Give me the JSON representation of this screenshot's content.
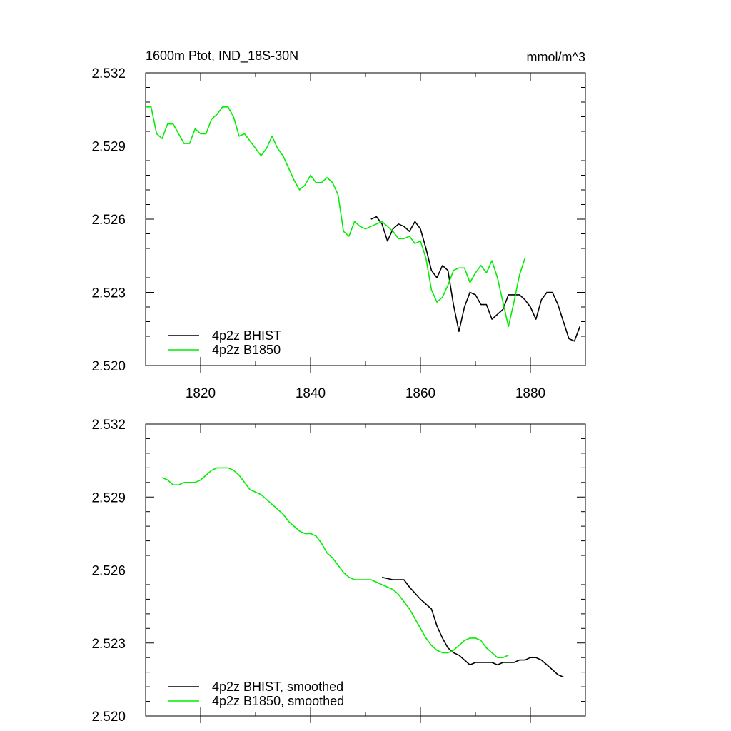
{
  "colors": {
    "bhist": "#000000",
    "b1850": "#00ee00"
  },
  "chart_data": [
    {
      "type": "line",
      "title_left": "1600m Ptot, IND_18S-30N",
      "title_right": "mmol/m^3",
      "xlim": [
        1810,
        1890
      ],
      "ylim": [
        2.52,
        2.532
      ],
      "xticks": [
        1820,
        1840,
        1860,
        1880
      ],
      "xtick_labels": [
        "1820",
        "1840",
        "1860",
        "1880"
      ],
      "yticks": [
        2.52,
        2.523,
        2.526,
        2.529,
        2.532
      ],
      "ytick_labels": [
        "2.520",
        "2.523",
        "2.526",
        "2.529",
        "2.532"
      ],
      "show_xtick_labels": true,
      "legend_position": "bottom-left",
      "series": [
        {
          "name": "4p2z BHIST",
          "color": "#000000",
          "x": [
            1851,
            1852,
            1853,
            1854,
            1855,
            1856,
            1857,
            1858,
            1859,
            1860,
            1861,
            1862,
            1863,
            1864,
            1865,
            1866,
            1867,
            1868,
            1869,
            1870,
            1871,
            1872,
            1873,
            1874,
            1875,
            1876,
            1877,
            1878,
            1879,
            1880,
            1881,
            1882,
            1883,
            1884,
            1885,
            1886,
            1887,
            1888,
            1889
          ],
          "y": [
            2.526,
            2.5261,
            2.5258,
            2.5251,
            2.5256,
            2.5258,
            2.5257,
            2.5255,
            2.5259,
            2.5256,
            2.5248,
            2.5239,
            2.5236,
            2.5241,
            2.5239,
            2.5225,
            2.5214,
            2.5224,
            2.523,
            2.5229,
            2.5225,
            2.5225,
            2.5219,
            2.5221,
            2.5223,
            2.5229,
            2.5229,
            2.5229,
            2.5227,
            2.5224,
            2.5219,
            2.5227,
            2.523,
            2.523,
            2.5225,
            2.5218,
            2.5211,
            2.521,
            2.5216
          ]
        },
        {
          "name": "4p2z B1850",
          "color": "#00ee00",
          "x": [
            1810,
            1811,
            1812,
            1813,
            1814,
            1815,
            1816,
            1817,
            1818,
            1819,
            1820,
            1821,
            1822,
            1823,
            1824,
            1825,
            1826,
            1827,
            1828,
            1829,
            1830,
            1831,
            1832,
            1833,
            1834,
            1835,
            1836,
            1837,
            1838,
            1839,
            1840,
            1841,
            1842,
            1843,
            1844,
            1845,
            1846,
            1847,
            1848,
            1849,
            1850,
            1851,
            1852,
            1853,
            1854,
            1855,
            1856,
            1857,
            1858,
            1859,
            1860,
            1861,
            1862,
            1863,
            1864,
            1865,
            1866,
            1867,
            1868,
            1869,
            1870,
            1871,
            1872,
            1873,
            1874,
            1875,
            1876,
            1877,
            1878,
            1879
          ],
          "y": [
            2.5306,
            2.5306,
            2.5295,
            2.5293,
            2.5299,
            2.5299,
            2.5295,
            2.5291,
            2.5291,
            2.5297,
            2.5295,
            2.5295,
            2.5301,
            2.5303,
            2.5306,
            2.5306,
            2.5302,
            2.5294,
            2.5295,
            2.5292,
            2.5289,
            2.5286,
            2.5289,
            2.5294,
            2.5289,
            2.5286,
            2.5281,
            2.5276,
            2.5272,
            2.5274,
            2.5278,
            2.5275,
            2.5275,
            2.5277,
            2.5275,
            2.527,
            2.5255,
            2.5253,
            2.5259,
            2.5257,
            2.5256,
            2.5257,
            2.5258,
            2.5259,
            2.5257,
            2.5255,
            2.5252,
            2.5252,
            2.5253,
            2.525,
            2.5251,
            2.5244,
            2.5231,
            2.5226,
            2.5228,
            2.5233,
            2.5239,
            2.524,
            2.524,
            2.5234,
            2.5238,
            2.5241,
            2.5238,
            2.5243,
            2.5236,
            2.5226,
            2.5216,
            2.5226,
            2.5237,
            2.5244
          ]
        }
      ]
    },
    {
      "type": "line",
      "xlim": [
        1810,
        1890
      ],
      "ylim": [
        2.52,
        2.532
      ],
      "xticks": [
        1820,
        1840,
        1860,
        1880
      ],
      "yticks": [
        2.52,
        2.523,
        2.526,
        2.529,
        2.532
      ],
      "ytick_labels": [
        "2.520",
        "2.523",
        "2.526",
        "2.529",
        "2.532"
      ],
      "show_xtick_labels": false,
      "legend_position": "bottom-left",
      "series": [
        {
          "name": "4p2z BHIST, smoothed",
          "color": "#000000",
          "x": [
            1853,
            1855,
            1857,
            1858,
            1860,
            1862,
            1863,
            1864,
            1865,
            1866,
            1867,
            1868,
            1869,
            1870,
            1871,
            1872,
            1873,
            1874,
            1875,
            1876,
            1877,
            1878,
            1879,
            1880,
            1881,
            1882,
            1883,
            1884,
            1885,
            1886
          ],
          "y": [
            2.5257,
            2.5256,
            2.5256,
            2.5253,
            2.5248,
            2.5244,
            2.5237,
            2.5232,
            2.5228,
            2.5226,
            2.5225,
            2.5223,
            2.5221,
            2.5222,
            2.5222,
            2.5222,
            2.5222,
            2.5221,
            2.5222,
            2.5222,
            2.5222,
            2.5223,
            2.5223,
            2.5224,
            2.5224,
            2.5223,
            2.5221,
            2.5219,
            2.5217,
            2.5216
          ]
        },
        {
          "name": "4p2z B1850, smoothed",
          "color": "#00ee00",
          "x": [
            1813,
            1814,
            1815,
            1816,
            1817,
            1818,
            1819,
            1820,
            1821,
            1822,
            1823,
            1824,
            1825,
            1826,
            1827,
            1828,
            1829,
            1830,
            1831,
            1832,
            1833,
            1834,
            1835,
            1836,
            1837,
            1838,
            1839,
            1840,
            1841,
            1842,
            1843,
            1844,
            1845,
            1846,
            1847,
            1848,
            1849,
            1850,
            1851,
            1852,
            1853,
            1854,
            1855,
            1856,
            1857,
            1858,
            1859,
            1860,
            1861,
            1862,
            1863,
            1864,
            1865,
            1866,
            1867,
            1868,
            1869,
            1870,
            1871,
            1872,
            1873,
            1874,
            1875,
            1876
          ],
          "y": [
            2.5298,
            2.5297,
            2.5295,
            2.5295,
            2.5296,
            2.5296,
            2.5296,
            2.5297,
            2.5299,
            2.5301,
            2.5302,
            2.5302,
            2.5302,
            2.5301,
            2.5299,
            2.5296,
            2.5293,
            2.5292,
            2.5291,
            2.5289,
            2.5287,
            2.5285,
            2.5283,
            2.528,
            2.5278,
            2.5276,
            2.5275,
            2.5275,
            2.5274,
            2.5271,
            2.5267,
            2.5265,
            2.5262,
            2.5259,
            2.5257,
            2.5256,
            2.5256,
            2.5256,
            2.5256,
            2.5255,
            2.5254,
            2.5253,
            2.5252,
            2.525,
            2.5247,
            2.5244,
            2.524,
            2.5236,
            2.5232,
            2.5229,
            2.5227,
            2.5226,
            2.5226,
            2.5227,
            2.5229,
            2.5231,
            2.5232,
            2.5232,
            2.5231,
            2.5228,
            2.5226,
            2.5224,
            2.5224,
            2.5225
          ]
        }
      ]
    }
  ]
}
